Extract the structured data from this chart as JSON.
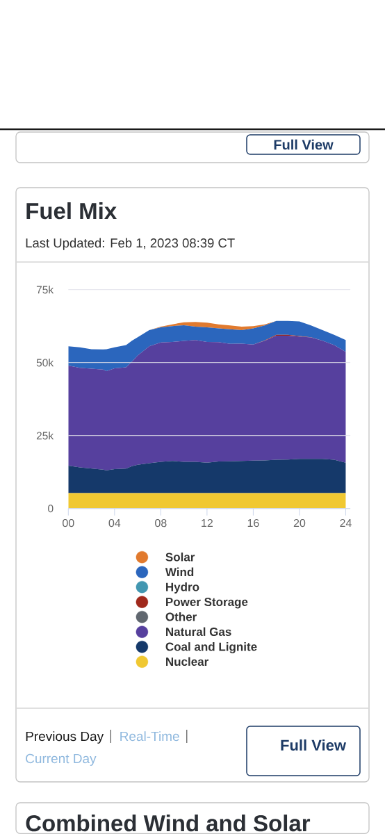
{
  "chart_data": {
    "type": "area",
    "title": "Fuel Mix",
    "subtitle": "Last Updated: Feb 1, 2023 08:39 CT",
    "annotations": [
      "Full View",
      "Previous Day",
      "Real-Time",
      "Current Day",
      "Full View",
      "Combined Wind and Solar"
    ],
    "x": [
      0,
      1,
      2,
      3,
      3.3,
      4,
      5,
      5.5,
      6,
      7,
      8,
      9,
      10,
      11,
      12,
      13,
      14,
      15,
      16,
      17,
      18,
      19,
      20,
      21,
      22,
      23,
      24
    ],
    "xlim": [
      0,
      24.4
    ],
    "xticks": [
      {
        "value": 0,
        "label": "00"
      },
      {
        "value": 4,
        "label": "04"
      },
      {
        "value": 8,
        "label": "08"
      },
      12,
      16,
      20,
      24
    ],
    "ylim": [
      0,
      75000
    ],
    "yticks": [
      0,
      {
        "value": 25000,
        "label": "25k"
      },
      {
        "value": 50000,
        "label": "50k"
      },
      {
        "value": 75000,
        "label": "75k"
      }
    ],
    "stacked": true,
    "grid": "y",
    "legend": "bottom",
    "series": [
      {
        "name": "Nuclear",
        "color": "#f0c832",
        "values": [
          5300,
          5300,
          5300,
          5300,
          5300,
          5300,
          5300,
          5300,
          5300,
          5300,
          5300,
          5300,
          5300,
          5300,
          5300,
          5300,
          5300,
          5300,
          5300,
          5300,
          5300,
          5300,
          5300,
          5300,
          5300,
          5300,
          5300
        ]
      },
      {
        "name": "Coal and Lignite",
        "color": "#15396a",
        "values": [
          9400,
          8800,
          8400,
          8000,
          7800,
          8200,
          8400,
          9200,
          9700,
          10200,
          10700,
          11000,
          10700,
          10700,
          10400,
          10800,
          10900,
          11000,
          11100,
          11200,
          11400,
          11500,
          11700,
          11700,
          11700,
          11400,
          10400
        ]
      },
      {
        "name": "Natural Gas",
        "color": "#56409e",
        "values": [
          34300,
          34100,
          34200,
          34300,
          34000,
          34500,
          34700,
          35800,
          37400,
          40100,
          40900,
          40800,
          41400,
          41700,
          41400,
          40900,
          40200,
          40200,
          39800,
          41000,
          42500,
          42400,
          41900,
          41600,
          40500,
          39300,
          38000
        ]
      },
      {
        "name": "Other",
        "color": "#60676f",
        "values": [
          null,
          null,
          null,
          null,
          null,
          null,
          null,
          null,
          null,
          null,
          null,
          null,
          null,
          null,
          null,
          null,
          null,
          null,
          null,
          null,
          null,
          null,
          null,
          null,
          null,
          null,
          null
        ]
      },
      {
        "name": "Power Storage",
        "color": "#a0291c",
        "values": [
          0,
          0,
          0,
          0,
          0,
          0,
          0,
          0,
          0,
          0,
          0,
          0,
          0,
          0,
          0,
          0,
          0,
          0,
          0,
          100,
          300,
          300,
          200,
          100,
          0,
          0,
          0
        ]
      },
      {
        "name": "Hydro",
        "color": "#4297b1",
        "values": [
          null,
          null,
          null,
          null,
          null,
          null,
          null,
          null,
          null,
          null,
          null,
          null,
          null,
          null,
          null,
          null,
          null,
          null,
          null,
          null,
          null,
          null,
          null,
          null,
          null,
          null,
          null
        ]
      },
      {
        "name": "Wind",
        "color": "#2b66bd",
        "values": [
          6600,
          7000,
          6700,
          6900,
          7500,
          7200,
          7600,
          7200,
          6300,
          5500,
          5200,
          5400,
          5400,
          4600,
          5000,
          4700,
          5000,
          4600,
          5500,
          5100,
          4800,
          4800,
          5000,
          4000,
          3600,
          3500,
          4000
        ]
      },
      {
        "name": "Solar",
        "color": "#e17a2e",
        "values": [
          0,
          0,
          0,
          0,
          0,
          0,
          0,
          0,
          0,
          0,
          200,
          600,
          1000,
          1600,
          1600,
          1400,
          1300,
          1200,
          800,
          400,
          0,
          0,
          0,
          0,
          0,
          0,
          0
        ]
      }
    ]
  }
}
